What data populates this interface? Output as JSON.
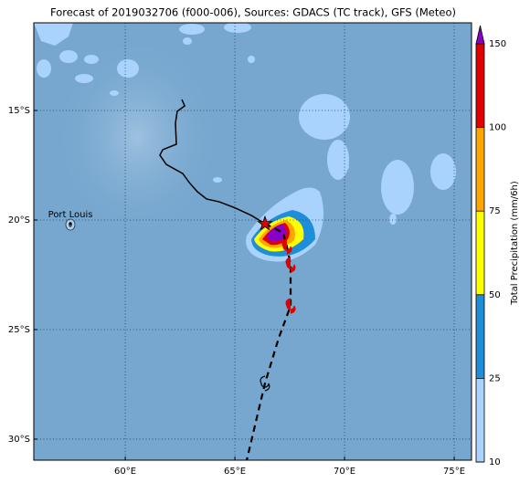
{
  "chart_data": {
    "type": "map",
    "title": "Forecast of 2019032706 (f000-006), Sources: GDACS (TC track), GFS (Meteo)",
    "xlim": [
      55.83,
      75.79
    ],
    "ylim": [
      -30.96,
      -11
    ],
    "xticks": [
      {
        "value": 60,
        "label": "60°E"
      },
      {
        "value": 65,
        "label": "65°E"
      },
      {
        "value": 70,
        "label": "70°E"
      },
      {
        "value": 75,
        "label": "75°E"
      }
    ],
    "yticks": [
      {
        "value": -15,
        "label": "15°S"
      },
      {
        "value": -20,
        "label": "20°S"
      },
      {
        "value": -25,
        "label": "25°S"
      },
      {
        "value": -30,
        "label": "30°S"
      }
    ],
    "grid": true,
    "places": [
      {
        "name": "Port Louis",
        "lon": 57.5,
        "lat": -20.16
      }
    ],
    "track": {
      "lon": [
        62.58,
        62.71,
        62.37,
        62.29,
        62.33,
        61.71,
        61.58,
        61.87,
        62.62,
        62.92,
        63.29,
        63.71,
        64.29,
        65.04,
        65.75,
        66.37
      ],
      "lat": [
        -14.5,
        -14.79,
        -15.04,
        -15.58,
        -16.54,
        -16.79,
        -17.04,
        -17.46,
        -17.88,
        -18.29,
        -18.71,
        -19.04,
        -19.17,
        -19.46,
        -19.79,
        -20.17
      ]
    },
    "forecast_track": {
      "lon": [
        66.37,
        67.2,
        67.37,
        67.54,
        67.54,
        67.0,
        66.37,
        65.54
      ],
      "lat": [
        -20.17,
        -20.58,
        -21.21,
        -22.04,
        -23.92,
        -25.38,
        -27.46,
        -30.96
      ]
    },
    "colorbar": {
      "label": "Total Precipitation (mm/6h)",
      "ticks": [
        10,
        25,
        50,
        75,
        100,
        150
      ],
      "colors": [
        "#a9d3fc",
        "#1e8ed8",
        "#ffff00",
        "#ffa500",
        "#e00000"
      ],
      "extend_color": "#8a00c8"
    }
  }
}
